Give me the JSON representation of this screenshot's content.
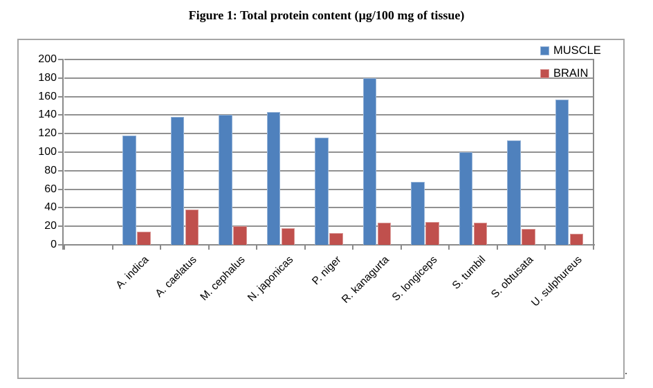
{
  "figure_caption": "Figure 1: Total protein content (µg/100 mg of tissue)",
  "trailing_mark": ".",
  "chart_data": {
    "type": "bar",
    "title": "Figure 1: Total protein content (µg/100 mg of tissue)",
    "categories": [
      "A. indica",
      "A. caelatus",
      "M. cephalus",
      "N. japonicas",
      "P. niger",
      "R. kanagurta",
      "S. longiceps",
      "S. tumbil",
      "S. obtusata",
      "U. sulphureus"
    ],
    "series": [
      {
        "name": "MUSCLE",
        "color": "#4F81BD",
        "edge_color": "#95B3D7",
        "values": [
          118,
          138,
          140,
          143,
          116,
          180,
          68,
          100,
          113,
          157
        ]
      },
      {
        "name": "BRAIN",
        "color": "#C0504D",
        "edge_color": "#D99694",
        "values": [
          14,
          38,
          20,
          18,
          13,
          24,
          25,
          24,
          17,
          12
        ]
      }
    ],
    "xlabel": "",
    "ylabel": "",
    "ylim": [
      0,
      200
    ],
    "ytick_step": 20,
    "ytick_labels": [
      0,
      20,
      40,
      60,
      80,
      100,
      120,
      140,
      160,
      180,
      200
    ],
    "legend": {
      "position": "top-right-inside",
      "entries": [
        "MUSCLE",
        "BRAIN"
      ]
    },
    "layout": {
      "grid": true,
      "leading_empty_slot": true,
      "x_label_rotation_deg": 45
    }
  }
}
